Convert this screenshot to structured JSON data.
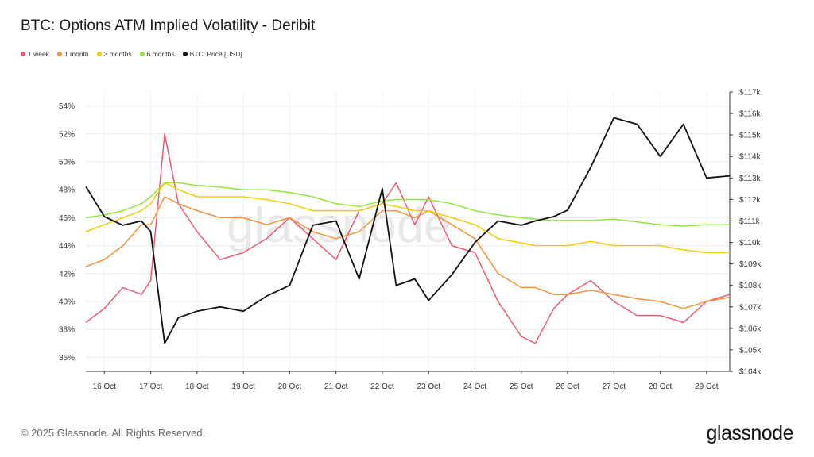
{
  "title": "BTC: Options ATM Implied Volatility - Deribit",
  "footer": "© 2025 Glassnode. All Rights Reserved.",
  "brand": "glassnode",
  "watermark": "glassnode",
  "legend": [
    {
      "label": "1 week",
      "color": "#ee5a72"
    },
    {
      "label": "1 month",
      "color": "#f5933a"
    },
    {
      "label": "3 months",
      "color": "#f2cc0c"
    },
    {
      "label": "6 months",
      "color": "#8fe63c"
    },
    {
      "label": "BTC: Price [USD]",
      "color": "#111111"
    }
  ],
  "chart_data": {
    "type": "line",
    "title": "BTC: Options ATM Implied Volatility - Deribit",
    "x_ticks": [
      "16 Oct",
      "17 Oct",
      "18 Oct",
      "19 Oct",
      "20 Oct",
      "21 Oct",
      "22 Oct",
      "23 Oct",
      "24 Oct",
      "25 Oct",
      "26 Oct",
      "27 Oct",
      "28 Oct",
      "29 Oct"
    ],
    "x_range": [
      "15 Oct 14:00",
      "29 Oct 12:00"
    ],
    "y_left": {
      "ticks": [
        "36%",
        "38%",
        "40%",
        "42%",
        "44%",
        "46%",
        "48%",
        "50%",
        "52%",
        "54%"
      ],
      "min": 35,
      "max": 55,
      "unit": "%"
    },
    "y_right": {
      "ticks": [
        "$104k",
        "$105k",
        "$106k",
        "$107k",
        "$108k",
        "$109k",
        "$110k",
        "$111k",
        "$112k",
        "$113k",
        "$114k",
        "$115k",
        "$116k",
        "$117k"
      ],
      "min": 104,
      "max": 117,
      "unit": "k USD"
    },
    "grid": true,
    "legend_position": "top-left",
    "x_days": [
      15.6,
      16.0,
      16.4,
      16.8,
      17.0,
      17.3,
      17.6,
      18.0,
      18.5,
      19.0,
      19.5,
      20.0,
      20.5,
      21.0,
      21.5,
      22.0,
      22.3,
      22.7,
      23.0,
      23.5,
      24.0,
      24.5,
      25.0,
      25.3,
      25.7,
      26.0,
      26.5,
      27.0,
      27.5,
      28.0,
      28.5,
      29.0,
      29.5
    ],
    "series": [
      {
        "name": "1 week",
        "color": "#ee5a72",
        "axis": "left",
        "values": [
          38.5,
          39.5,
          41.0,
          40.5,
          41.5,
          52.0,
          47.0,
          45.0,
          43.0,
          43.5,
          44.5,
          46.0,
          44.5,
          43.0,
          46.5,
          47.0,
          48.5,
          45.5,
          47.5,
          44.0,
          43.5,
          40.0,
          37.5,
          37.0,
          39.5,
          40.5,
          41.5,
          40.0,
          39.0,
          39.0,
          38.5,
          40.0,
          40.5
        ]
      },
      {
        "name": "1 month",
        "color": "#f5933a",
        "axis": "left",
        "values": [
          42.5,
          43.0,
          44.0,
          45.5,
          45.5,
          47.5,
          47.0,
          46.5,
          46.0,
          46.0,
          45.5,
          46.0,
          45.0,
          44.5,
          45.0,
          46.5,
          46.5,
          46.0,
          46.5,
          45.5,
          44.5,
          42.0,
          41.0,
          41.0,
          40.5,
          40.5,
          40.8,
          40.5,
          40.2,
          40.0,
          39.5,
          40.0,
          40.3
        ]
      },
      {
        "name": "3 months",
        "color": "#f2cc0c",
        "axis": "left",
        "values": [
          45.0,
          45.5,
          46.0,
          46.5,
          47.0,
          48.5,
          48.0,
          47.5,
          47.5,
          47.5,
          47.3,
          47.0,
          46.5,
          46.5,
          46.5,
          47.0,
          46.8,
          46.5,
          46.5,
          46.0,
          45.5,
          44.5,
          44.2,
          44.0,
          44.0,
          44.0,
          44.3,
          44.0,
          44.0,
          44.0,
          43.7,
          43.5,
          43.5
        ]
      },
      {
        "name": "6 months",
        "color": "#8fe63c",
        "axis": "left",
        "values": [
          46.0,
          46.2,
          46.5,
          47.0,
          47.5,
          48.5,
          48.5,
          48.3,
          48.2,
          48.0,
          48.0,
          47.8,
          47.5,
          47.0,
          46.8,
          47.2,
          47.3,
          47.3,
          47.3,
          47.0,
          46.5,
          46.2,
          46.0,
          45.9,
          45.8,
          45.8,
          45.8,
          45.9,
          45.7,
          45.5,
          45.4,
          45.5,
          45.5
        ]
      },
      {
        "name": "BTC: Price [USD]",
        "color": "#111111",
        "axis": "right",
        "values": [
          112.6,
          111.2,
          110.8,
          111.0,
          110.5,
          105.3,
          106.5,
          106.8,
          107.0,
          106.8,
          107.5,
          108.0,
          110.8,
          111.0,
          108.3,
          112.5,
          108.0,
          108.3,
          107.3,
          108.5,
          110.0,
          111.0,
          110.8,
          111.0,
          111.2,
          111.5,
          113.5,
          115.8,
          115.5,
          114.0,
          115.5,
          113.0,
          113.1
        ]
      }
    ]
  }
}
